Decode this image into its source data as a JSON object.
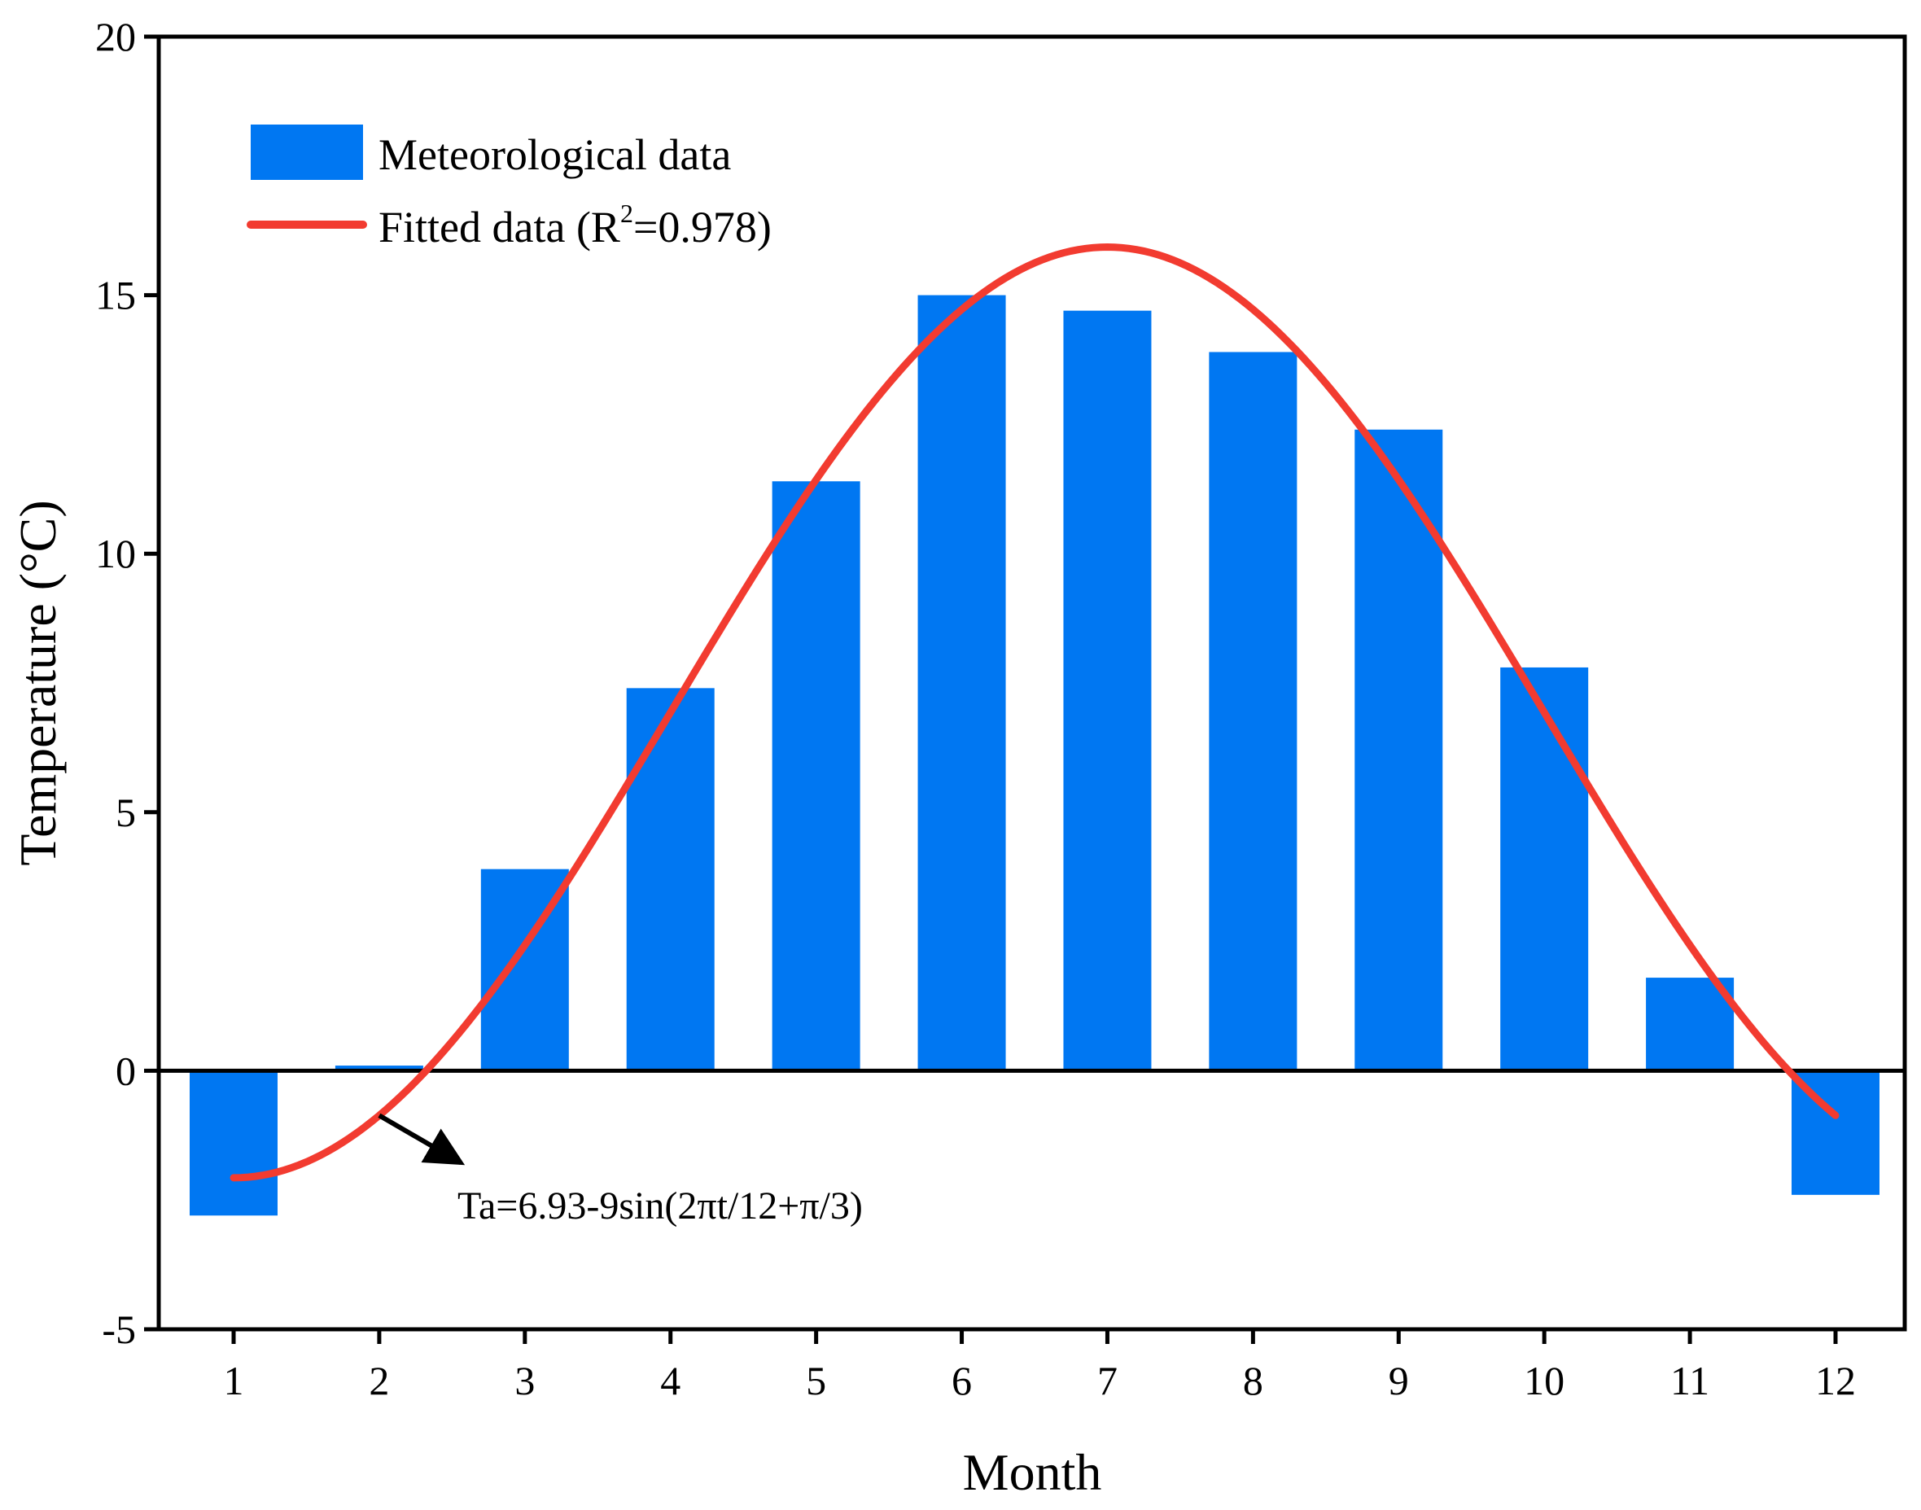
{
  "chart_data": {
    "type": "bar",
    "categories": [
      "1",
      "2",
      "3",
      "4",
      "5",
      "6",
      "7",
      "8",
      "9",
      "10",
      "11",
      "12"
    ],
    "series": [
      {
        "name": "Meteorological data",
        "type": "bar",
        "color": "#0077F2",
        "values": [
          -2.8,
          0.1,
          3.9,
          7.4,
          11.4,
          15.0,
          14.7,
          13.9,
          12.4,
          7.8,
          1.8,
          -2.4
        ]
      },
      {
        "name": "Fitted data",
        "type": "line",
        "color": "#F23B30",
        "formula": "6.93-9sin(2*pi*t/12+pi/3)",
        "x_range": [
          1,
          12
        ]
      }
    ],
    "xlabel": "Month",
    "ylabel": "Temperature (°C)",
    "ylim": [
      -5,
      20
    ],
    "yticks": [
      "-5",
      "0",
      "5",
      "10",
      "15",
      "20"
    ],
    "legend": {
      "position": "top-left",
      "bar_label": "Meteorological data",
      "line_label_prefix": "Fitted data (R",
      "line_label_sup": "2",
      "line_label_suffix": "=0.978)"
    },
    "annotation": {
      "text": "Ta=6.93-9sin(2πt/12+π/3)",
      "arrow_from_month": 2
    },
    "zero_line": true,
    "grid": false
  }
}
